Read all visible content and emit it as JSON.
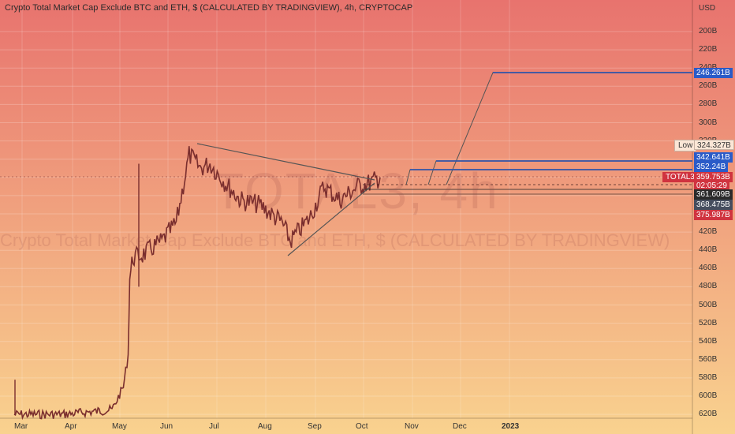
{
  "header": {
    "title": "Crypto Total Market Cap Exclude BTC and ETH, $ (CALCULATED BY TRADINGVIEW), 4h, CRYPTOCAP"
  },
  "watermark": {
    "symbol": "TOTAL3, 4h",
    "description": "Crypto Total Market Cap Exclude BTC and ETH, $ (CALCULATED BY TRADINGVIEW)"
  },
  "colors": {
    "bg_top": "#e8736e",
    "bg_bottom": "#f9d28f",
    "line_blue": "#2f54a8",
    "line_gray": "#555555",
    "candle": "#7a2e2e",
    "tag_red": "#d0333f",
    "tag_blue": "#2a5bc8",
    "tag_dark": "#2b2b2b",
    "tag_gray": "#454d5e"
  },
  "axis": {
    "currency": "USD",
    "y_ticks": [
      "200B",
      "220B",
      "240B",
      "260B",
      "280B",
      "300B",
      "320B",
      "340B",
      "360B",
      "380B",
      "400B",
      "420B",
      "440B",
      "460B",
      "480B",
      "500B",
      "520B",
      "540B",
      "560B",
      "580B",
      "600B",
      "620B"
    ],
    "x_ticks": [
      "Mar",
      "Apr",
      "May",
      "Jun",
      "Jul",
      "Aug",
      "Sep",
      "Oct",
      "Nov",
      "Dec",
      "2023"
    ]
  },
  "price_tags": {
    "target": "246.261B",
    "low_label": "Low",
    "low_value": "324.327B",
    "level1": "342.641B",
    "level2": "352.24B",
    "symbol": "TOTAL3",
    "last_price": "359.753B",
    "countdown": "02:05:29",
    "level3": "361.609B",
    "level4": "368.475B",
    "level5": "375.987B"
  },
  "chart_data": {
    "type": "line",
    "title": "Crypto Total Market Cap Exclude BTC and ETH, $ (CALCULATED BY TRADINGVIEW), 4h, CRYPTOCAP",
    "ylabel": "USD",
    "y_axis_inverted": true,
    "ylim": [
      620,
      200
    ],
    "x": [
      "2022-03-01",
      "2022-04-01",
      "2022-05-01",
      "2022-05-08",
      "2022-05-11",
      "2022-05-12",
      "2022-05-14",
      "2022-05-20",
      "2022-06-01",
      "2022-06-10",
      "2022-06-18",
      "2022-06-25",
      "2022-07-01",
      "2022-07-10",
      "2022-07-20",
      "2022-08-01",
      "2022-08-15",
      "2022-08-20",
      "2022-09-01",
      "2022-09-10",
      "2022-09-20",
      "2022-10-01",
      "2022-10-10",
      "2022-10-15"
    ],
    "series": [
      {
        "values": [
          620,
          620,
          615,
          590,
          555,
          470,
          448,
          445,
          430,
          410,
          335,
          350,
          345,
          365,
          385,
          390,
          410,
          430,
          405,
          370,
          385,
          370,
          365,
          360
        ]
      }
    ],
    "levels": [
      246.261,
      324.327,
      342.641,
      352.24,
      359.753,
      361.609,
      368.475,
      375.987
    ]
  }
}
